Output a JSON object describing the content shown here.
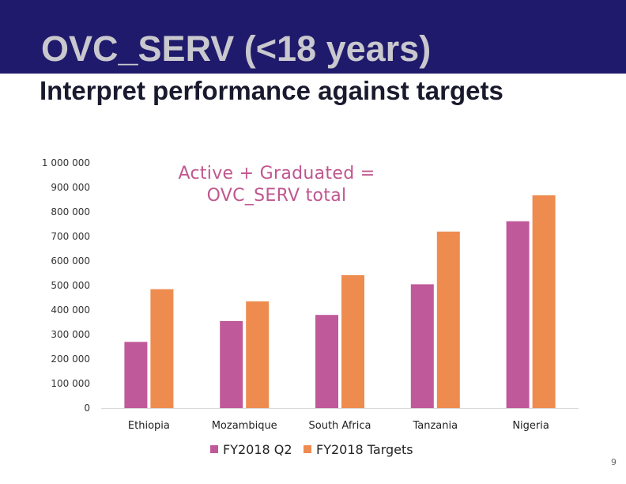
{
  "slide": {
    "title": "OVC_SERV (<18 years)",
    "subtitle": "Interpret performance against targets",
    "page_number": "9"
  },
  "chart_data": {
    "type": "bar",
    "annotation": "Active + Graduated = OVC_SERV total",
    "categories": [
      "Ethiopia",
      "Mozambique",
      "South Africa",
      "Tanzania",
      "Nigeria"
    ],
    "series": [
      {
        "name": "FY2018 Q2",
        "color": "#c0599a",
        "values": [
          270000,
          355000,
          380000,
          505000,
          762000
        ]
      },
      {
        "name": "FY2018 Targets",
        "color": "#ee8c4f",
        "values": [
          485000,
          435000,
          542000,
          720000,
          868000
        ]
      }
    ],
    "ylim": [
      0,
      1000000
    ],
    "yticks": [
      {
        "value": 0,
        "label": "0"
      },
      {
        "value": 100000,
        "label": "100 000"
      },
      {
        "value": 200000,
        "label": "200 000"
      },
      {
        "value": 300000,
        "label": "300 000"
      },
      {
        "value": 400000,
        "label": "400 000"
      },
      {
        "value": 500000,
        "label": "500 000"
      },
      {
        "value": 600000,
        "label": "600 000"
      },
      {
        "value": 700000,
        "label": "700 000"
      },
      {
        "value": 800000,
        "label": "800 000"
      },
      {
        "value": 900000,
        "label": "900 000"
      },
      {
        "value": 1000000,
        "label": "1 000 000"
      }
    ],
    "legend_position": "bottom",
    "grid": false
  }
}
